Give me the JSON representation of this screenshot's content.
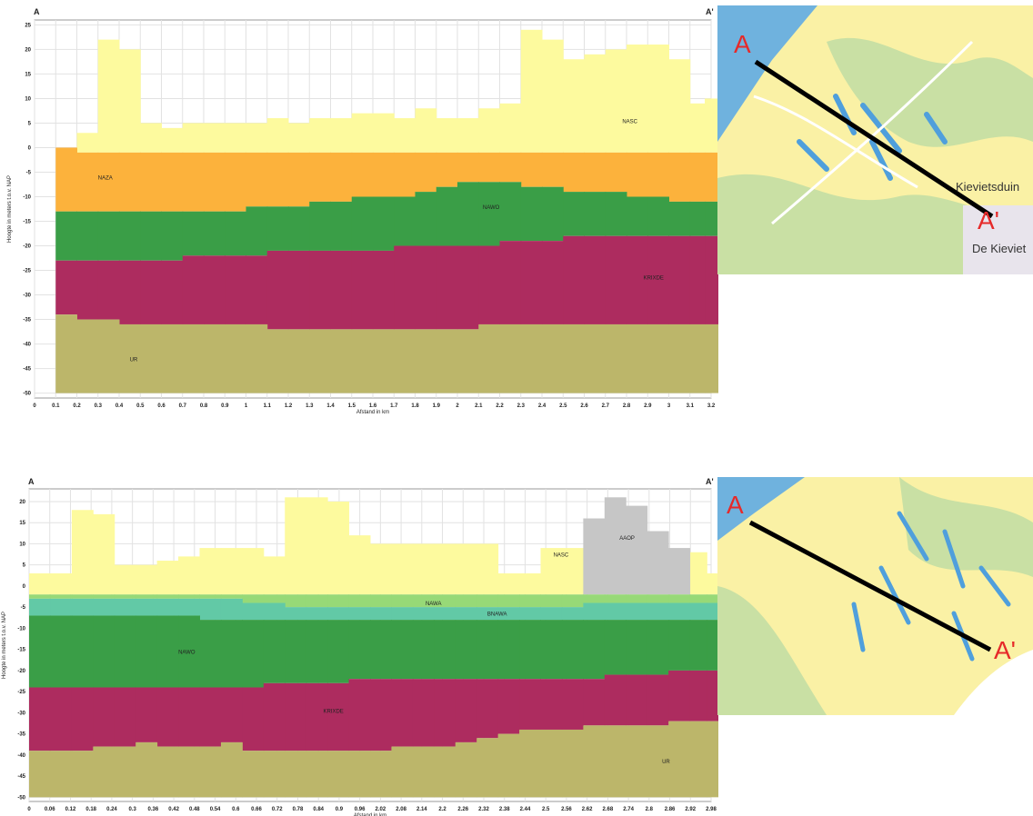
{
  "chart_data": [
    {
      "type": "area",
      "title": "",
      "section_start": "A",
      "section_end": "A'",
      "xlabel": "Afstand in km",
      "ylabel": "Hoogte in meters t.o.v. NAP",
      "xlim": [
        0,
        3.2
      ],
      "ylim": [
        -51,
        26
      ],
      "grid": true,
      "x_ticks": [
        "0",
        "0.1",
        "0.2",
        "0.3",
        "0.4",
        "0.5",
        "0.6",
        "0.7",
        "0.8",
        "0.9",
        "1",
        "1.1",
        "1.2",
        "1.3",
        "1.4",
        "1.5",
        "1.6",
        "1.7",
        "1.8",
        "1.9",
        "2",
        "2.1",
        "2.2",
        "2.3",
        "2.4",
        "2.5",
        "2.6",
        "2.7",
        "2.8",
        "2.9",
        "3",
        "3.1",
        "3.2"
      ],
      "y_ticks": [
        "25",
        "20",
        "15",
        "10",
        "5",
        "0",
        "-5",
        "-10",
        "-15",
        "-20",
        "-25",
        "-30",
        "-35",
        "-40",
        "-45",
        "-50"
      ],
      "x": [
        0.1,
        0.2,
        0.3,
        0.4,
        0.5,
        0.6,
        0.7,
        0.8,
        0.9,
        1.0,
        1.1,
        1.2,
        1.3,
        1.4,
        1.5,
        1.6,
        1.7,
        1.8,
        1.9,
        2.0,
        2.1,
        2.2,
        2.3,
        2.4,
        2.5,
        2.6,
        2.7,
        2.8,
        2.9,
        3.0,
        3.1,
        3.17
      ],
      "layers_from_top": [
        {
          "name": "NASC",
          "color": "#fdfa9e",
          "label_pos": [
            2.78,
            5
          ],
          "top": [
            0,
            3,
            22,
            20,
            5,
            4,
            5,
            5,
            5,
            5,
            6,
            5,
            6,
            6,
            7,
            7,
            6,
            8,
            6,
            6,
            8,
            9,
            24,
            22,
            18,
            19,
            20,
            21,
            21,
            18,
            9,
            10
          ]
        },
        {
          "name": "NAZA",
          "color": "#fcb23c",
          "label_pos": [
            0.3,
            -6.5
          ],
          "top": [
            0,
            -1,
            -1,
            -1,
            -1,
            -1,
            -1,
            -1,
            -1,
            -1,
            -1,
            -1,
            -1,
            -1,
            -1,
            -1,
            -1,
            -1,
            -1,
            -1,
            -1,
            -1,
            -1,
            -1,
            -1,
            -1,
            -1,
            -1,
            -1,
            -1,
            -1,
            -1
          ]
        },
        {
          "name": "NAWO",
          "color": "#3a9e47",
          "label_pos": [
            2.12,
            -12.5
          ],
          "top": [
            -13,
            -13,
            -13,
            -13,
            -13,
            -13,
            -13,
            -13,
            -13,
            -12,
            -12,
            -12,
            -11,
            -11,
            -10,
            -10,
            -10,
            -9,
            -8,
            -7,
            -7,
            -7,
            -8,
            -8,
            -9,
            -9,
            -9,
            -10,
            -10,
            -11,
            -11,
            -11
          ]
        },
        {
          "name": "KRIXDE",
          "color": "#ad2c5f",
          "label_pos": [
            2.88,
            -26.8
          ],
          "top": [
            -23,
            -23,
            -23,
            -23,
            -23,
            -23,
            -22,
            -22,
            -22,
            -22,
            -21,
            -21,
            -21,
            -21,
            -21,
            -21,
            -20,
            -20,
            -20,
            -20,
            -20,
            -19,
            -19,
            -19,
            -18,
            -18,
            -18,
            -18,
            -18,
            -18,
            -18,
            -18
          ]
        },
        {
          "name": "UR",
          "color": "#bcb66a",
          "label_pos": [
            0.45,
            -43.5
          ],
          "top": [
            -34,
            -35,
            -35,
            -36,
            -36,
            -36,
            -36,
            -36,
            -36,
            -36,
            -37,
            -37,
            -37,
            -37,
            -37,
            -37,
            -37,
            -37,
            -37,
            -37,
            -36,
            -36,
            -36,
            -36,
            -36,
            -36,
            -36,
            -36,
            -36,
            -36,
            -36,
            -36
          ]
        }
      ],
      "bottom": -50
    },
    {
      "type": "area",
      "title": "",
      "section_start": "A",
      "section_end": "A'",
      "xlabel": "Afstand in km",
      "ylabel": "Hoogte in meters t.o.v. NAP",
      "xlim": [
        0,
        3.2
      ],
      "ylim": [
        -51,
        23
      ],
      "grid": true,
      "x_ticks": [
        "0",
        "0.06",
        "0.12",
        "0.18",
        "0.24",
        "0.3",
        "0.36",
        "0.42",
        "0.48",
        "0.54",
        "0.6",
        "0.66",
        "0.72",
        "0.78",
        "0.84",
        "0.9",
        "0.96",
        "2.02",
        "2.08",
        "2.14",
        "2.2",
        "2.26",
        "2.32",
        "2.38",
        "2.44",
        "2.5",
        "2.56",
        "2.62",
        "2.68",
        "2.74",
        "2.8",
        "2.86",
        "2.92",
        "2.98"
      ],
      "y_ticks": [
        "20",
        "15",
        "10",
        "5",
        "0",
        "-5",
        "-10",
        "-15",
        "-20",
        "-25",
        "-30",
        "-35",
        "-40",
        "-45",
        "-50"
      ],
      "x": [
        0,
        0.1,
        0.2,
        0.3,
        0.4,
        0.5,
        0.6,
        0.7,
        0.8,
        0.9,
        1.0,
        1.1,
        1.2,
        1.3,
        1.4,
        1.5,
        1.6,
        1.7,
        1.8,
        1.9,
        2.0,
        2.1,
        2.2,
        2.3,
        2.4,
        2.5,
        2.6,
        2.7,
        2.8,
        2.9,
        3.0,
        3.1,
        3.18
      ],
      "layers_from_top": [
        {
          "name": "NASC",
          "color": "#fdfa9e",
          "label_pos": [
            2.46,
            7
          ],
          "top": [
            3,
            3,
            18,
            17,
            5,
            5,
            6,
            7,
            9,
            9,
            9,
            7,
            21,
            21,
            20,
            12,
            10,
            10,
            10,
            10,
            10,
            10,
            3,
            3,
            9,
            9,
            15,
            20,
            18,
            12,
            9,
            8,
            3
          ]
        },
        {
          "name": "AAOP",
          "color": "#c6c6c6",
          "label_pos": [
            2.77,
            11
          ],
          "top": [
            null,
            null,
            null,
            null,
            null,
            null,
            null,
            null,
            null,
            null,
            null,
            null,
            null,
            null,
            null,
            null,
            null,
            null,
            null,
            null,
            null,
            null,
            null,
            null,
            null,
            null,
            16,
            21,
            19,
            13,
            9,
            null,
            null
          ]
        },
        {
          "name": "NAWA",
          "color": "#97d977",
          "label_pos": [
            1.86,
            -4.5
          ],
          "top": [
            -2,
            -2,
            -2,
            -2,
            -2,
            -2,
            -2,
            -2,
            -2,
            -2,
            -2,
            -2,
            -2,
            -2,
            -2,
            -2,
            -2,
            -2,
            -2,
            -2,
            -2,
            -2,
            -2,
            -2,
            -2,
            -2,
            -2,
            -2,
            -2,
            -2,
            -2,
            -2,
            -2
          ]
        },
        {
          "name": "BNAWA",
          "color": "#62c9a6",
          "label_pos": [
            2.15,
            -7
          ],
          "top": [
            -3,
            -3,
            -3,
            -3,
            -3,
            -3,
            -3,
            -3,
            -3,
            -3,
            -4,
            -4,
            -5,
            -5,
            -5,
            -5,
            -5,
            -5,
            -5,
            -5,
            -5,
            -5,
            -5,
            -5,
            -5,
            -5,
            -4,
            -4,
            -4,
            -4,
            -4,
            -4,
            -4
          ]
        },
        {
          "name": "NAWO",
          "color": "#3a9e47",
          "label_pos": [
            0.7,
            -16
          ],
          "top": [
            -7,
            -7,
            -7,
            -7,
            -7,
            -7,
            -7,
            -7,
            -8,
            -8,
            -8,
            -8,
            -8,
            -8,
            -8,
            -8,
            -8,
            -8,
            -8,
            -8,
            -8,
            -8,
            -8,
            -8,
            -8,
            -8,
            -8,
            -8,
            -8,
            -8,
            -8,
            -8,
            -8
          ]
        },
        {
          "name": "KRIXDE",
          "color": "#ad2c5f",
          "label_pos": [
            1.38,
            -30
          ],
          "top": [
            -24,
            -24,
            -24,
            -24,
            -24,
            -24,
            -24,
            -24,
            -24,
            -24,
            -24,
            -23,
            -23,
            -23,
            -23,
            -22,
            -22,
            -22,
            -22,
            -22,
            -22,
            -22,
            -22,
            -22,
            -22,
            -22,
            -22,
            -21,
            -21,
            -21,
            -20,
            -20,
            -20
          ]
        },
        {
          "name": "UR",
          "color": "#bcb66a",
          "label_pos": [
            2.97,
            -42
          ],
          "top": [
            -39,
            -39,
            -39,
            -38,
            -38,
            -37,
            -38,
            -38,
            -38,
            -37,
            -39,
            -39,
            -39,
            -39,
            -39,
            -39,
            -39,
            -38,
            -38,
            -38,
            -37,
            -36,
            -35,
            -34,
            -34,
            -34,
            -33,
            -33,
            -33,
            -33,
            -32,
            -32,
            -32
          ]
        }
      ],
      "bottom": -50
    }
  ],
  "maps": [
    {
      "label_a": "A",
      "label_b": "A'",
      "place_1": "Kievietsduin",
      "place_2": "De Kieviet"
    },
    {
      "label_a": "A",
      "label_b": "A'"
    }
  ]
}
